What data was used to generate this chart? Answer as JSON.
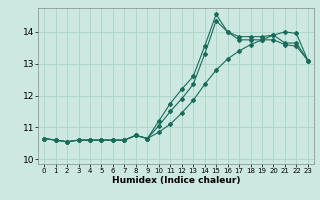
{
  "xlabel": "Humidex (Indice chaleur)",
  "ylabel": "",
  "bg_color": "#cce8e0",
  "grid_color": "#aad4cc",
  "line_color": "#1a6b5a",
  "xlim": [
    -0.5,
    23.5
  ],
  "ylim": [
    9.85,
    14.75
  ],
  "xticks": [
    0,
    1,
    2,
    3,
    4,
    5,
    6,
    7,
    8,
    9,
    10,
    11,
    12,
    13,
    14,
    15,
    16,
    17,
    18,
    19,
    20,
    21,
    22,
    23
  ],
  "yticks": [
    10,
    11,
    12,
    13,
    14
  ],
  "line1_x": [
    0,
    1,
    2,
    3,
    4,
    5,
    6,
    7,
    8,
    9,
    10,
    11,
    12,
    13,
    14,
    15,
    16,
    17,
    18,
    19,
    20,
    21,
    22,
    23
  ],
  "line1_y": [
    10.65,
    10.6,
    10.55,
    10.6,
    10.6,
    10.6,
    10.6,
    10.6,
    10.75,
    10.65,
    11.2,
    11.75,
    12.2,
    12.6,
    13.55,
    14.55,
    14.0,
    13.85,
    13.85,
    13.85,
    13.9,
    13.65,
    13.65,
    13.1
  ],
  "line2_x": [
    0,
    1,
    2,
    3,
    4,
    5,
    6,
    7,
    8,
    9,
    10,
    11,
    12,
    13,
    14,
    15,
    16,
    17,
    18,
    19,
    20,
    21,
    22,
    23
  ],
  "line2_y": [
    10.65,
    10.6,
    10.55,
    10.6,
    10.6,
    10.6,
    10.6,
    10.6,
    10.75,
    10.65,
    11.05,
    11.5,
    11.9,
    12.35,
    13.3,
    14.35,
    14.0,
    13.75,
    13.75,
    13.75,
    13.75,
    13.6,
    13.55,
    13.1
  ],
  "line3_x": [
    0,
    1,
    2,
    3,
    4,
    5,
    6,
    7,
    8,
    9,
    10,
    11,
    12,
    13,
    14,
    15,
    16,
    17,
    18,
    19,
    20,
    21,
    22,
    23
  ],
  "line3_y": [
    10.65,
    10.6,
    10.55,
    10.6,
    10.6,
    10.6,
    10.6,
    10.6,
    10.75,
    10.65,
    10.85,
    11.1,
    11.45,
    11.85,
    12.35,
    12.8,
    13.15,
    13.4,
    13.6,
    13.75,
    13.9,
    14.0,
    13.95,
    13.1
  ]
}
